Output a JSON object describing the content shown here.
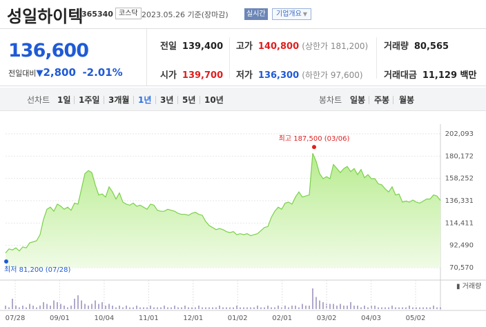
{
  "header": {
    "company": "성일하이텍",
    "code": "365340",
    "market": "코스닥",
    "date_text": "2023.05.26 기준(장마감)",
    "realtime_label": "실시간",
    "overview_label": "기업개요"
  },
  "quote": {
    "price": "136,600",
    "change_label": "전일대비",
    "change_amount": "2,800",
    "change_pct": "-2.01%",
    "prev_label": "전일",
    "prev_value": "139,400",
    "high_label": "고가",
    "high_value": "140,800",
    "upper_limit": "(상한가 181,200)",
    "volume_label": "거래량",
    "volume_value": "80,565",
    "open_label": "시가",
    "open_value": "139,700",
    "low_label": "저가",
    "low_value": "136,300",
    "lower_limit": "(하한가 97,600)",
    "amount_label": "거래대금",
    "amount_value": "11,129 백만"
  },
  "tabs": {
    "line_label": "선차트",
    "periods": [
      "1일",
      "1주일",
      "3개월",
      "1년",
      "3년",
      "5년",
      "10년"
    ],
    "active_period": "1년",
    "candle_label": "봉차트",
    "candles": [
      "일봉",
      "주봉",
      "월봉"
    ]
  },
  "colors": {
    "up": "#e01e1e",
    "down": "#1f5ad6",
    "line": "#7ad04b",
    "fill_top": "#b7ec8e",
    "fill_bottom": "#f0fbe6"
  },
  "chart_data": {
    "type": "area",
    "title": "",
    "y_ticks": [
      "202,093",
      "180,172",
      "158,252",
      "136,331",
      "114,411",
      "92,490",
      "70,570"
    ],
    "ylim": [
      70570,
      202093
    ],
    "x_ticks": [
      "07/28",
      "09/01",
      "10/04",
      "11/01",
      "12/01",
      "01/02",
      "02/01",
      "03/02",
      "04/03",
      "05/02"
    ],
    "max_label": "최고 187,500 (03/06)",
    "min_label": "최저 81,200 (07/28)",
    "volume_legend": "거래량",
    "prices": [
      85000,
      89000,
      88000,
      90000,
      87000,
      91000,
      90000,
      95000,
      96000,
      97000,
      103000,
      118000,
      128000,
      130000,
      126000,
      133000,
      131000,
      128000,
      130000,
      127000,
      134000,
      133000,
      148000,
      163000,
      166000,
      164000,
      152000,
      142000,
      143000,
      140000,
      150000,
      145000,
      138000,
      144000,
      135000,
      133000,
      132000,
      134000,
      131000,
      132000,
      130000,
      128000,
      133000,
      132000,
      127000,
      126000,
      126000,
      128000,
      127000,
      126000,
      124000,
      123000,
      123000,
      122000,
      124000,
      125000,
      123000,
      122000,
      116000,
      112000,
      110000,
      108000,
      109000,
      108000,
      106000,
      105000,
      106000,
      103000,
      104000,
      103000,
      104000,
      102000,
      103000,
      104000,
      107000,
      110000,
      111000,
      120000,
      126000,
      130000,
      128000,
      134000,
      135000,
      133000,
      140000,
      145000,
      140000,
      141000,
      142000,
      183000,
      175000,
      163000,
      158000,
      160000,
      158000,
      172000,
      168000,
      164000,
      168000,
      170000,
      165000,
      168000,
      162000,
      167000,
      159000,
      162000,
      158000,
      158000,
      153000,
      152000,
      148000,
      145000,
      150000,
      142000,
      143000,
      135000,
      136000,
      135000,
      137000,
      135000,
      134000,
      136000,
      138000,
      138000,
      142000,
      141000,
      136600
    ],
    "volumes": [
      2,
      1,
      6,
      2,
      1,
      2,
      1,
      3,
      2,
      1,
      2,
      4,
      3,
      2,
      5,
      4,
      3,
      2,
      1,
      2,
      6,
      8,
      5,
      3,
      2,
      3,
      5,
      3,
      4,
      2,
      3,
      2,
      1,
      2,
      1,
      2,
      1,
      1,
      2,
      1,
      1,
      1,
      2,
      1,
      1,
      1,
      2,
      1,
      1,
      2,
      1,
      1,
      2,
      1,
      1,
      1,
      2,
      1,
      1,
      1,
      1,
      1,
      2,
      1,
      1,
      1,
      1,
      2,
      1,
      1,
      1,
      1,
      1,
      2,
      1,
      1,
      2,
      1,
      1,
      2,
      1,
      2,
      1,
      2,
      2,
      1,
      3,
      2,
      2,
      12,
      7,
      5,
      4,
      3,
      3,
      3,
      2,
      3,
      2,
      2,
      4,
      2,
      2,
      1,
      2,
      1,
      2,
      2,
      1,
      1,
      1,
      1,
      2,
      1,
      1,
      1,
      1,
      2,
      1,
      1,
      1,
      1,
      1,
      1,
      2,
      1,
      1
    ],
    "max_index": 89,
    "min_index": 0
  }
}
